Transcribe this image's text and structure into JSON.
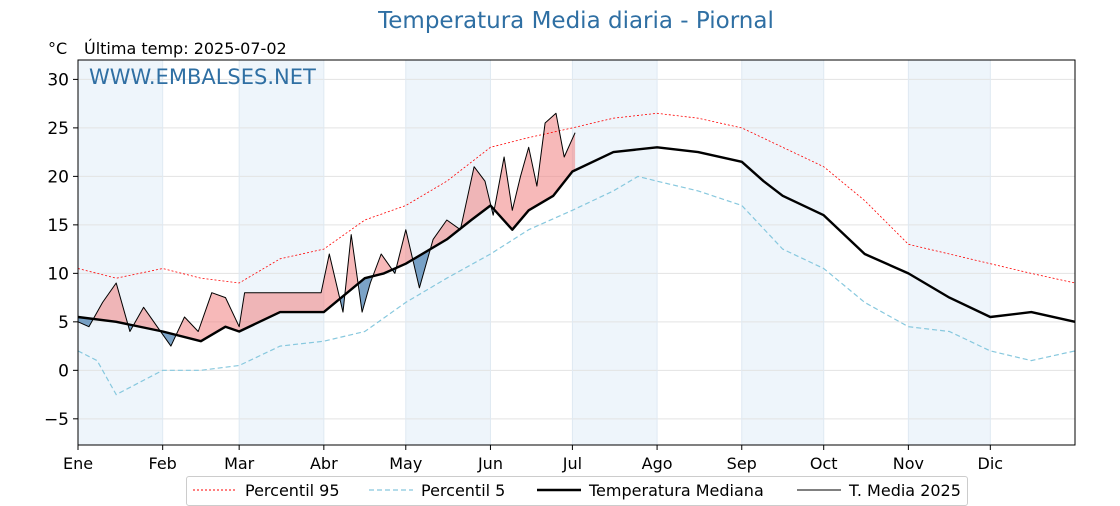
{
  "header": {
    "title": "Temperatura Media diaria - Piornal",
    "unit": "°C",
    "last_temp": "Última temp: 2025-07-02"
  },
  "watermark": "WWW.EMBALSES.NET",
  "colors": {
    "p95": "#ff0000",
    "p5": "#87c8de",
    "median": "#000000",
    "current": "#000000",
    "above_fill": "#f08080",
    "below_fill": "#4f84b4",
    "month_band": "#eef5fb",
    "title": "#2f6fa3"
  },
  "legend": {
    "p95": "Percentil 95",
    "p5": "Percentil 5",
    "median": "Temperatura Mediana",
    "current": "T. Media 2025"
  },
  "chart_data": {
    "type": "line",
    "title": "Temperatura Media diaria - Piornal",
    "ylabel": "°C",
    "ylim": [
      -7.7,
      32
    ],
    "yticks": [
      -5,
      0,
      5,
      10,
      15,
      20,
      25,
      30
    ],
    "xlim": [
      1,
      366
    ],
    "month_labels": [
      "Ene",
      "Feb",
      "Mar",
      "Abr",
      "May",
      "Jun",
      "Jul",
      "Ago",
      "Sep",
      "Oct",
      "Nov",
      "Dic"
    ],
    "month_starts": [
      1,
      32,
      60,
      91,
      121,
      152,
      182,
      213,
      244,
      274,
      305,
      335
    ],
    "grid": true,
    "legend_position": "bottom",
    "series": [
      {
        "name": "Percentil 95",
        "key": "p95",
        "x": [
          1,
          15,
          32,
          46,
          60,
          75,
          91,
          106,
          121,
          136,
          152,
          166,
          182,
          197,
          213,
          228,
          244,
          259,
          274,
          289,
          305,
          320,
          335,
          350,
          366
        ],
        "values": [
          10.5,
          9.5,
          10.5,
          9.5,
          9.0,
          11.5,
          12.5,
          15.5,
          17.0,
          19.5,
          23.0,
          24.0,
          25.0,
          26.0,
          26.5,
          26.0,
          25.0,
          23.0,
          21.0,
          17.5,
          13.0,
          12.0,
          11.0,
          10.0,
          9.0
        ]
      },
      {
        "name": "Percentil 5",
        "key": "p5",
        "x": [
          1,
          8,
          15,
          32,
          46,
          60,
          75,
          91,
          106,
          121,
          136,
          152,
          166,
          182,
          197,
          206,
          213,
          228,
          244,
          259,
          274,
          289,
          305,
          320,
          335,
          350,
          366
        ],
        "values": [
          2.0,
          1.0,
          -2.5,
          0.0,
          0.0,
          0.5,
          2.5,
          3.0,
          4.0,
          7.0,
          9.5,
          12.0,
          14.5,
          16.5,
          18.5,
          20.0,
          19.5,
          18.5,
          17.0,
          12.5,
          10.5,
          7.0,
          4.5,
          4.0,
          2.0,
          1.0,
          2.0
        ]
      },
      {
        "name": "Temperatura Mediana",
        "key": "median",
        "x": [
          1,
          15,
          32,
          46,
          55,
          60,
          75,
          91,
          106,
          113,
          121,
          136,
          145,
          152,
          160,
          166,
          175,
          182,
          197,
          213,
          228,
          244,
          252,
          259,
          274,
          289,
          305,
          320,
          335,
          350,
          366
        ],
        "values": [
          5.5,
          5.0,
          4.0,
          3.0,
          4.5,
          4.0,
          6.0,
          6.0,
          9.5,
          10.0,
          11.0,
          13.5,
          15.5,
          17.0,
          14.5,
          16.5,
          18.0,
          20.5,
          22.5,
          23.0,
          22.5,
          21.5,
          19.5,
          18.0,
          16.0,
          12.0,
          10.0,
          7.5,
          5.5,
          6.0,
          5.0
        ]
      },
      {
        "name": "T. Media 2025",
        "key": "current",
        "x": [
          1,
          5,
          10,
          15,
          20,
          25,
          30,
          35,
          40,
          45,
          50,
          55,
          60,
          62,
          90,
          93,
          98,
          101,
          105,
          108,
          112,
          117,
          121,
          126,
          131,
          136,
          141,
          146,
          150,
          153,
          157,
          160,
          163,
          166,
          169,
          172,
          176,
          179,
          183
        ],
        "values": [
          5.0,
          4.5,
          7.0,
          9.0,
          4.0,
          6.5,
          4.5,
          2.5,
          5.5,
          4.0,
          8.0,
          7.5,
          4.5,
          8.0,
          8.0,
          12.0,
          6.0,
          14.0,
          6.0,
          9.0,
          12.0,
          10.0,
          14.5,
          8.5,
          13.5,
          15.5,
          14.5,
          21.0,
          19.5,
          16.0,
          22.0,
          16.5,
          20.0,
          23.0,
          19.0,
          25.5,
          26.5,
          22.0,
          24.5
        ]
      }
    ]
  }
}
